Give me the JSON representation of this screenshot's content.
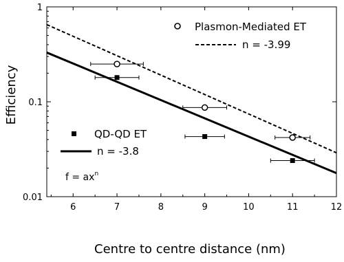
{
  "chart_data": {
    "type": "scatter",
    "xlabel": "Centre to centre distance (nm)",
    "ylabel": "Efficiency",
    "xlim": [
      5.4,
      12
    ],
    "ylim": [
      0.01,
      1
    ],
    "yscale": "log",
    "grid": false,
    "x_ticks": [
      6,
      7,
      8,
      9,
      10,
      11,
      12
    ],
    "x_tick_labels": [
      "6",
      "7",
      "8",
      "9",
      "10",
      "11",
      "12"
    ],
    "y_ticks": [
      0.01,
      0.1,
      1
    ],
    "y_tick_labels": [
      "0.01",
      "0.1",
      "1"
    ],
    "series": [
      {
        "name": "Plasmon-Mediated ET",
        "marker": "open-circle",
        "points": [
          {
            "x": 7,
            "y": 0.25,
            "xerr": 0.6
          },
          {
            "x": 9,
            "y": 0.087,
            "xerr": 0.5
          },
          {
            "x": 11,
            "y": 0.042,
            "xerr": 0.4
          }
        ]
      },
      {
        "name": "QD-QD ET",
        "marker": "filled-square",
        "points": [
          {
            "x": 7,
            "y": 0.18,
            "xerr": 0.5
          },
          {
            "x": 9,
            "y": 0.043,
            "xerr": 0.45
          },
          {
            "x": 11,
            "y": 0.024,
            "xerr": 0.5
          }
        ]
      }
    ],
    "fits": [
      {
        "series": "Plasmon-Mediated ET",
        "label": "n = -3.99",
        "style": "dashed",
        "x": [
          5.4,
          12
        ],
        "y": [
          0.65,
          0.029
        ]
      },
      {
        "series": "QD-QD ET",
        "label": "n = -3.8",
        "style": "solid",
        "x": [
          5.4,
          12
        ],
        "y": [
          0.33,
          0.0177
        ]
      }
    ],
    "annotation": {
      "base": "f = ax",
      "superscript": "n"
    },
    "legend_placement": "top-right and left"
  }
}
